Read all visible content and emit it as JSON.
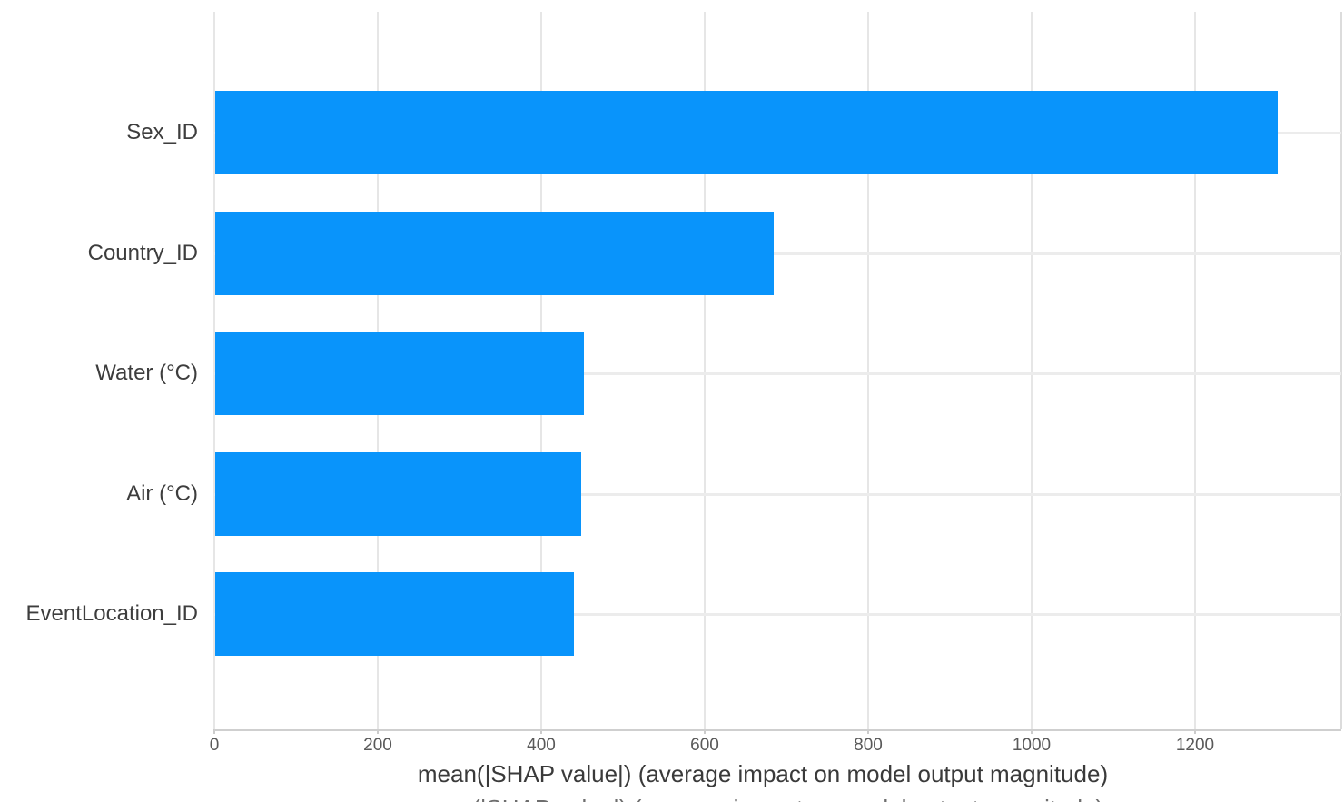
{
  "chart_data": {
    "type": "bar",
    "orientation": "horizontal",
    "title": "",
    "categories": [
      "Sex_ID",
      "Country_ID",
      "Water (°C)",
      "Air (°C)",
      "EventLocation_ID"
    ],
    "values": [
      1300,
      683,
      451,
      448,
      439
    ],
    "xlabel": "mean(|SHAP value|) (average impact on model output magnitude)",
    "ylabel": "",
    "x_ticks": [
      0,
      200,
      400,
      600,
      800,
      1000,
      1200
    ],
    "xlim": [
      0,
      1379
    ],
    "grid": true,
    "legend_position": "none",
    "bar_color": "#0994fb",
    "background_color": "#ffffff"
  },
  "footer": {
    "cropped_text": "mean(|SHAP value|) (average impact on model output magnitude)"
  }
}
